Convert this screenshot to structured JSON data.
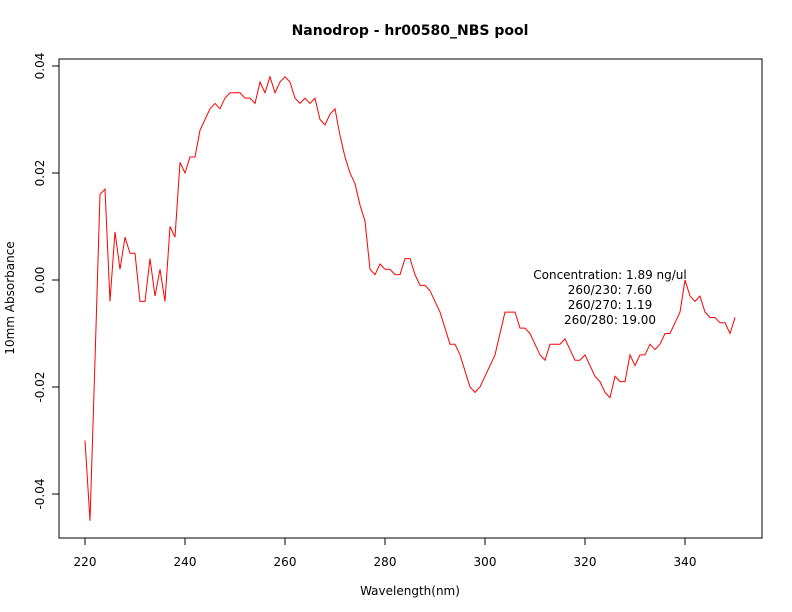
{
  "chart_data": {
    "type": "line",
    "title": "Nanodrop - hr00580_NBS pool",
    "xlabel": "Wavelength(nm)",
    "ylabel": "10mm Absorbance",
    "xlim": [
      220,
      350
    ],
    "ylim": [
      -0.045,
      0.038
    ],
    "grid": false,
    "x_ticks": [
      220,
      240,
      260,
      280,
      300,
      320,
      340
    ],
    "x_tick_labels": [
      "220",
      "240",
      "260",
      "280",
      "300",
      "320",
      "340"
    ],
    "y_ticks": [
      -0.04,
      -0.02,
      0.0,
      0.02,
      0.04
    ],
    "y_tick_labels": [
      "-0.04",
      "-0.02",
      "0.00",
      "0.02",
      "0.04"
    ],
    "colors": {
      "series": "#ff0000",
      "axis": "#000000"
    },
    "annotations": [
      "Concentration: 1.89 ng/ul",
      "260/230: 7.60",
      "260/270: 1.19",
      "260/280: 19.00"
    ],
    "series": [
      {
        "x": [
          220,
          221,
          222,
          223,
          224,
          225,
          226,
          227,
          228,
          229,
          230,
          231,
          232,
          233,
          234,
          235,
          236,
          237,
          238,
          239,
          240,
          241,
          242,
          243,
          244,
          245,
          246,
          247,
          248,
          249,
          250,
          251,
          252,
          253,
          254,
          255,
          256,
          257,
          258,
          259,
          260,
          261,
          262,
          263,
          264,
          265,
          266,
          267,
          268,
          269,
          270,
          271,
          272,
          273,
          274,
          275,
          276,
          277,
          278,
          279,
          280,
          281,
          282,
          283,
          284,
          285,
          286,
          287,
          288,
          289,
          290,
          291,
          292,
          293,
          294,
          295,
          296,
          297,
          298,
          299,
          300,
          301,
          302,
          303,
          304,
          305,
          306,
          307,
          308,
          309,
          310,
          311,
          312,
          313,
          314,
          315,
          316,
          317,
          318,
          319,
          320,
          321,
          322,
          323,
          324,
          325,
          326,
          327,
          328,
          329,
          330,
          331,
          332,
          333,
          334,
          335,
          336,
          337,
          338,
          339,
          340,
          341,
          342,
          343,
          344,
          345,
          346,
          347,
          348,
          349,
          350
        ],
        "y": [
          -0.03,
          -0.045,
          -0.015,
          0.016,
          0.017,
          -0.004,
          0.009,
          0.002,
          0.008,
          0.005,
          0.005,
          -0.004,
          -0.004,
          0.004,
          -0.003,
          0.002,
          -0.004,
          0.01,
          0.008,
          0.022,
          0.02,
          0.023,
          0.023,
          0.028,
          0.03,
          0.032,
          0.033,
          0.032,
          0.034,
          0.035,
          0.035,
          0.035,
          0.034,
          0.034,
          0.033,
          0.037,
          0.035,
          0.038,
          0.035,
          0.037,
          0.038,
          0.037,
          0.034,
          0.033,
          0.034,
          0.033,
          0.034,
          0.03,
          0.029,
          0.031,
          0.032,
          0.027,
          0.023,
          0.02,
          0.018,
          0.014,
          0.011,
          0.002,
          0.001,
          0.003,
          0.002,
          0.002,
          0.001,
          0.001,
          0.004,
          0.004,
          0.001,
          -0.001,
          -0.001,
          -0.002,
          -0.004,
          -0.006,
          -0.009,
          -0.012,
          -0.012,
          -0.014,
          -0.017,
          -0.02,
          -0.021,
          -0.02,
          -0.018,
          -0.016,
          -0.014,
          -0.01,
          -0.006,
          -0.006,
          -0.006,
          -0.009,
          -0.009,
          -0.01,
          -0.012,
          -0.014,
          -0.015,
          -0.012,
          -0.012,
          -0.012,
          -0.011,
          -0.013,
          -0.015,
          -0.015,
          -0.014,
          -0.016,
          -0.018,
          -0.019,
          -0.021,
          -0.022,
          -0.018,
          -0.019,
          -0.019,
          -0.014,
          -0.016,
          -0.014,
          -0.014,
          -0.012,
          -0.013,
          -0.012,
          -0.01,
          -0.01,
          -0.008,
          -0.006,
          0.0,
          -0.003,
          -0.004,
          -0.003,
          -0.006,
          -0.007,
          -0.007,
          -0.008,
          -0.008,
          -0.01,
          -0.007
        ]
      }
    ]
  }
}
